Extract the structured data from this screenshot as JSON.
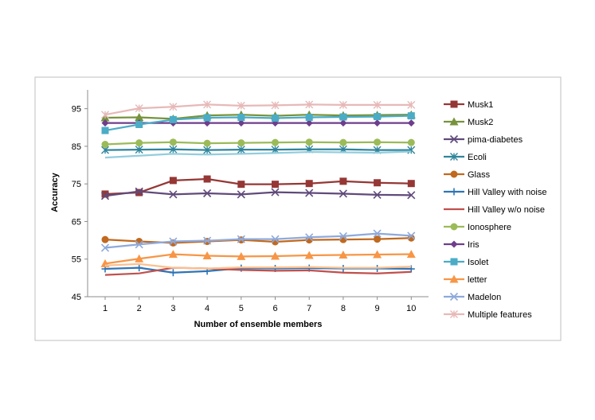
{
  "chart_data": {
    "type": "line",
    "title": "",
    "xlabel": "Number  of ensemble members",
    "ylabel": "Accuracy",
    "x": [
      1,
      2,
      3,
      4,
      5,
      6,
      7,
      8,
      9,
      10
    ],
    "ylim": [
      45,
      100
    ],
    "yticks": [
      45,
      55,
      65,
      75,
      85,
      95
    ],
    "grid": false,
    "legend_position": "right",
    "series": [
      {
        "name": "Musk1",
        "color": "#953735",
        "marker": "square",
        "values": [
          72.3,
          72.7,
          75.9,
          76.3,
          74.9,
          74.9,
          75.1,
          75.7,
          75.3,
          75.1
        ]
      },
      {
        "name": "Musk2",
        "color": "#77933C",
        "marker": "triangle",
        "values": [
          92.6,
          92.7,
          92.3,
          93.2,
          93.4,
          93.1,
          93.4,
          93.2,
          93.3,
          93.4
        ]
      },
      {
        "name": "pima-diabetes",
        "color": "#604A7B",
        "marker": "x",
        "values": [
          71.8,
          73.0,
          72.2,
          72.5,
          72.2,
          72.8,
          72.6,
          72.4,
          72.1,
          72.0
        ]
      },
      {
        "name": "Ecoli",
        "color": "#31859C",
        "marker": "asterisk",
        "values": [
          84.0,
          84.1,
          84.2,
          84.0,
          84.1,
          84.1,
          84.2,
          84.2,
          84.0,
          84.0
        ]
      },
      {
        "name": "Glass",
        "color": "#C0691F",
        "marker": "circle",
        "values": [
          60.2,
          59.7,
          59.3,
          59.7,
          60.1,
          59.6,
          60.1,
          60.2,
          60.3,
          60.6
        ]
      },
      {
        "name": "Hill Valley with noise",
        "color": "#2E75B6",
        "marker": "plus",
        "values": [
          52.4,
          52.7,
          51.4,
          51.8,
          52.6,
          52.5,
          52.6,
          52.5,
          52.5,
          52.4
        ]
      },
      {
        "name": "Hill Valley w/o noise",
        "color": "#C0504D",
        "marker": "none",
        "values": [
          50.8,
          51.2,
          52.7,
          52.5,
          52.1,
          51.9,
          52.0,
          51.4,
          51.2,
          51.6
        ]
      },
      {
        "name": "Ionosphere",
        "color": "#9BBB59",
        "marker": "circle",
        "values": [
          85.5,
          85.9,
          86.1,
          85.8,
          85.9,
          86.0,
          86.1,
          86.0,
          86.1,
          86.0
        ]
      },
      {
        "name": "Iris",
        "color": "#6E3E8C",
        "marker": "diamond",
        "values": [
          91.2,
          91.2,
          91.2,
          91.2,
          91.2,
          91.2,
          91.2,
          91.2,
          91.2,
          91.2
        ]
      },
      {
        "name": "Isolet",
        "color": "#4BACC6",
        "marker": "square",
        "values": [
          89.2,
          90.8,
          92.1,
          92.6,
          92.7,
          92.5,
          92.7,
          92.8,
          92.9,
          93.1
        ]
      },
      {
        "name": "letter",
        "color": "#F79646",
        "marker": "triangle",
        "values": [
          53.8,
          55.1,
          56.3,
          55.9,
          55.7,
          55.8,
          56.0,
          56.1,
          56.2,
          56.3
        ]
      },
      {
        "name": "Madelon",
        "color": "#8EA9DB",
        "marker": "x",
        "values": [
          58.0,
          58.9,
          59.7,
          59.9,
          60.3,
          60.3,
          60.8,
          61.1,
          61.8,
          61.2
        ]
      },
      {
        "name": "Multiple features",
        "color": "#E6B9B8",
        "marker": "asterisk",
        "values": [
          93.4,
          95.1,
          95.5,
          96.1,
          95.8,
          95.9,
          96.1,
          96.0,
          96.0,
          96.0
        ]
      },
      {
        "name": "",
        "color": "#93CDDD",
        "marker": "none",
        "legend": false,
        "values": [
          82.0,
          82.5,
          83.0,
          82.8,
          83.0,
          83.2,
          83.5,
          83.4,
          83.3,
          83.6
        ]
      },
      {
        "name": "",
        "color": "#FAC090",
        "marker": "none",
        "legend": false,
        "values": [
          53.3,
          53.7,
          52.7,
          52.5,
          52.8,
          52.8,
          52.9,
          52.7,
          52.7,
          53.0
        ]
      }
    ]
  }
}
